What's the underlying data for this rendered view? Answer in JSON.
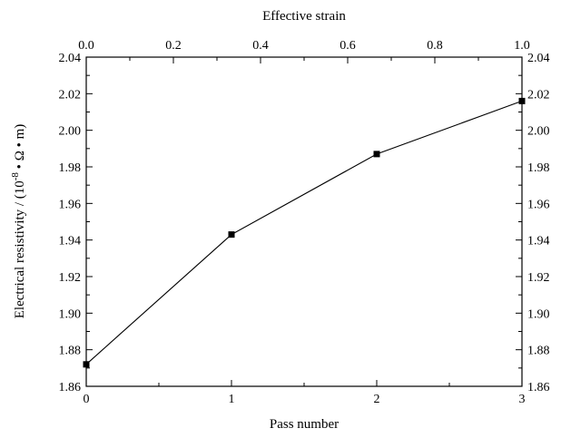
{
  "chart_data": {
    "type": "line",
    "x": [
      0,
      1,
      2,
      3
    ],
    "series": [
      {
        "values": [
          1.872,
          1.943,
          1.987,
          2.016
        ],
        "color": "#000000",
        "marker": "square"
      }
    ],
    "xlabel": "Pass number",
    "x2label": "Effective strain",
    "ylabel_text": "Electrical resistivity / (10",
    "ylabel_exp": "-8",
    "ylabel_unit": " • Ω • m)",
    "xlim": [
      0,
      3
    ],
    "x2lim": [
      0.0,
      1.0
    ],
    "ylim": [
      1.86,
      2.04
    ],
    "x_ticks": [
      "0",
      "1",
      "2",
      "3"
    ],
    "x2_ticks": [
      "0.0",
      "0.2",
      "0.4",
      "0.6",
      "0.8",
      "1.0"
    ],
    "y_ticks": [
      "1.86",
      "1.88",
      "1.90",
      "1.92",
      "1.94",
      "1.96",
      "1.98",
      "2.00",
      "2.02",
      "2.04"
    ],
    "grid": false
  }
}
